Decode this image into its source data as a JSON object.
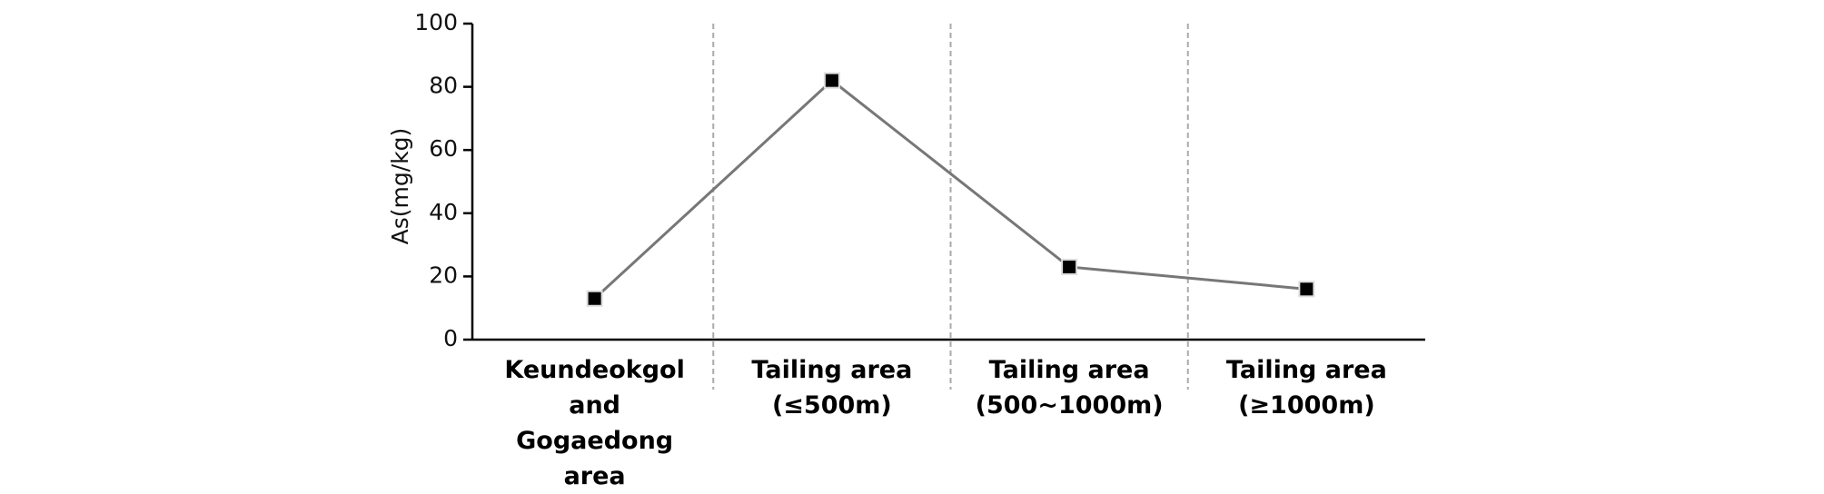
{
  "chart_data": {
    "type": "line",
    "ylabel": "As(mg/kg)",
    "categories": [
      "Keundeokgol\nand\nGogaedong\narea",
      "Tailing area\n(≤500m)",
      "Tailing area\n(500~1000m)",
      "Tailing area\n(≥1000m)"
    ],
    "values": [
      13,
      82,
      23,
      16
    ],
    "color": "#777777",
    "marker_color": "#000000",
    "ylim": [
      0,
      100
    ],
    "yticks": [
      0,
      20,
      40,
      60,
      80,
      100
    ],
    "grid": false
  }
}
